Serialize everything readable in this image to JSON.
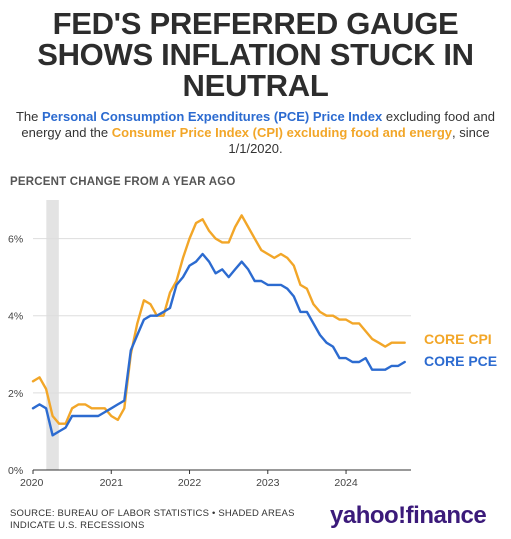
{
  "title_lines": [
    "FED'S PREFERRED GAUGE",
    "SHOWS INFLATION STUCK IN",
    "NEUTRAL"
  ],
  "subtitle": {
    "prefix": "The ",
    "pce": "Personal Consumption Expenditures (PCE) Price Index",
    "middle": " excluding food and energy and the ",
    "cpi": "Consumer Price Index (CPI) excluding food and energy",
    "suffix": ", since 1/1/2020."
  },
  "footer_lines": [
    "SOURCE: BUREAU OF LABOR STATISTICS • SHADED AREAS",
    "INDICATE U.S. RECESSIONS"
  ],
  "logo_text": "yahoo!finance",
  "colors": {
    "cpi": "#f2a628",
    "pce": "#2c6bd0",
    "recession": "#e3e3e3",
    "grid": "#dddddd",
    "axis": "#333333"
  },
  "chart_data": {
    "type": "line",
    "ylabel": "PERCENT CHANGE FROM A YEAR AGO",
    "xlim": [
      2020.0,
      2024.83
    ],
    "ylim": [
      0,
      7
    ],
    "yticks": [
      0,
      2,
      4,
      6
    ],
    "ytick_labels": [
      "0%",
      "2%",
      "4%",
      "6%"
    ],
    "xticks": [
      2020,
      2021,
      2022,
      2023,
      2024
    ],
    "xtick_labels": [
      "2020",
      "2021",
      "2022",
      "2023",
      "2024"
    ],
    "grid": true,
    "recessions": [
      [
        2020.17,
        2020.33
      ]
    ],
    "x": [
      2020.0,
      2020.083,
      2020.167,
      2020.25,
      2020.333,
      2020.417,
      2020.5,
      2020.583,
      2020.667,
      2020.75,
      2020.833,
      2020.917,
      2021.0,
      2021.083,
      2021.167,
      2021.25,
      2021.333,
      2021.417,
      2021.5,
      2021.583,
      2021.667,
      2021.75,
      2021.833,
      2021.917,
      2022.0,
      2022.083,
      2022.167,
      2022.25,
      2022.333,
      2022.417,
      2022.5,
      2022.583,
      2022.667,
      2022.75,
      2022.833,
      2022.917,
      2023.0,
      2023.083,
      2023.167,
      2023.25,
      2023.333,
      2023.417,
      2023.5,
      2023.583,
      2023.667,
      2023.75,
      2023.833,
      2023.917,
      2024.0,
      2024.083,
      2024.167,
      2024.25,
      2024.333,
      2024.417,
      2024.5,
      2024.583,
      2024.667,
      2024.75
    ],
    "series": [
      {
        "name": "CORE CPI",
        "values": [
          2.3,
          2.4,
          2.1,
          1.4,
          1.2,
          1.2,
          1.6,
          1.7,
          1.7,
          1.6,
          1.6,
          1.6,
          1.4,
          1.3,
          1.6,
          3.0,
          3.8,
          4.4,
          4.3,
          4.0,
          4.0,
          4.6,
          4.9,
          5.5,
          6.0,
          6.4,
          6.5,
          6.2,
          6.0,
          5.9,
          5.9,
          6.3,
          6.6,
          6.3,
          6.0,
          5.7,
          5.6,
          5.5,
          5.6,
          5.5,
          5.3,
          4.8,
          4.7,
          4.3,
          4.1,
          4.0,
          4.0,
          3.9,
          3.9,
          3.8,
          3.8,
          3.6,
          3.4,
          3.3,
          3.2,
          3.3,
          3.3,
          3.3
        ]
      },
      {
        "name": "CORE PCE",
        "values": [
          1.6,
          1.7,
          1.6,
          0.9,
          1.0,
          1.1,
          1.4,
          1.4,
          1.4,
          1.4,
          1.4,
          1.5,
          1.6,
          1.7,
          1.8,
          3.1,
          3.5,
          3.9,
          4.0,
          4.0,
          4.1,
          4.2,
          4.8,
          5.0,
          5.3,
          5.4,
          5.6,
          5.4,
          5.1,
          5.2,
          5.0,
          5.2,
          5.4,
          5.2,
          4.9,
          4.9,
          4.8,
          4.8,
          4.8,
          4.7,
          4.5,
          4.1,
          4.1,
          3.8,
          3.5,
          3.3,
          3.2,
          2.9,
          2.9,
          2.8,
          2.8,
          2.9,
          2.6,
          2.6,
          2.6,
          2.7,
          2.7,
          2.8
        ]
      }
    ],
    "series_labels": [
      "CORE CPI",
      "CORE PCE"
    ]
  }
}
